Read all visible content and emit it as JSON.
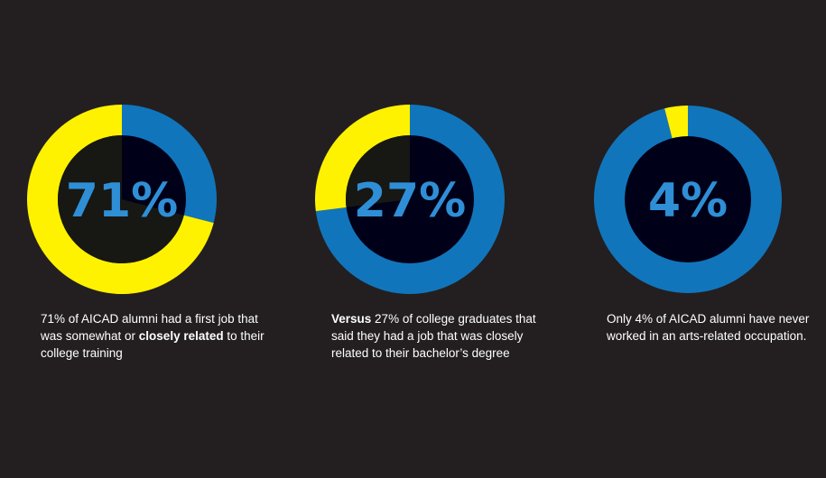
{
  "colors": {
    "background": "#231f20",
    "yellow": "#fff200",
    "blue": "#1175bb",
    "center": "#000018",
    "label": "#2f8fd6"
  },
  "chart_data": [
    {
      "type": "pie",
      "variant": "donut",
      "slices": [
        {
          "label": "somewhat or closely related",
          "value": 71,
          "color": "#fff200"
        },
        {
          "label": "other",
          "value": 29,
          "color": "#1175bb"
        }
      ],
      "center_label": "71%",
      "caption": {
        "before": "71% of AICAD alumni had a first job that was somewhat or ",
        "bold": "closely related",
        "after": " to their college training"
      }
    },
    {
      "type": "pie",
      "variant": "donut",
      "slices": [
        {
          "label": "closely related",
          "value": 27,
          "color": "#fff200"
        },
        {
          "label": "other",
          "value": 73,
          "color": "#1175bb"
        }
      ],
      "center_label": "27%",
      "caption": {
        "before": "",
        "bold": "Versus",
        "after": " 27% of college graduates that said they had a job that was closely related to their bachelor’s degree"
      }
    },
    {
      "type": "pie",
      "variant": "donut",
      "slices": [
        {
          "label": "never worked in an arts-related occupation",
          "value": 4,
          "color": "#fff200"
        },
        {
          "label": "other",
          "value": 96,
          "color": "#1175bb"
        }
      ],
      "center_label": "4%",
      "caption": {
        "before": "Only 4% of AICAD alumni have never worked in an arts-related occupation.",
        "bold": "",
        "after": ""
      }
    }
  ]
}
